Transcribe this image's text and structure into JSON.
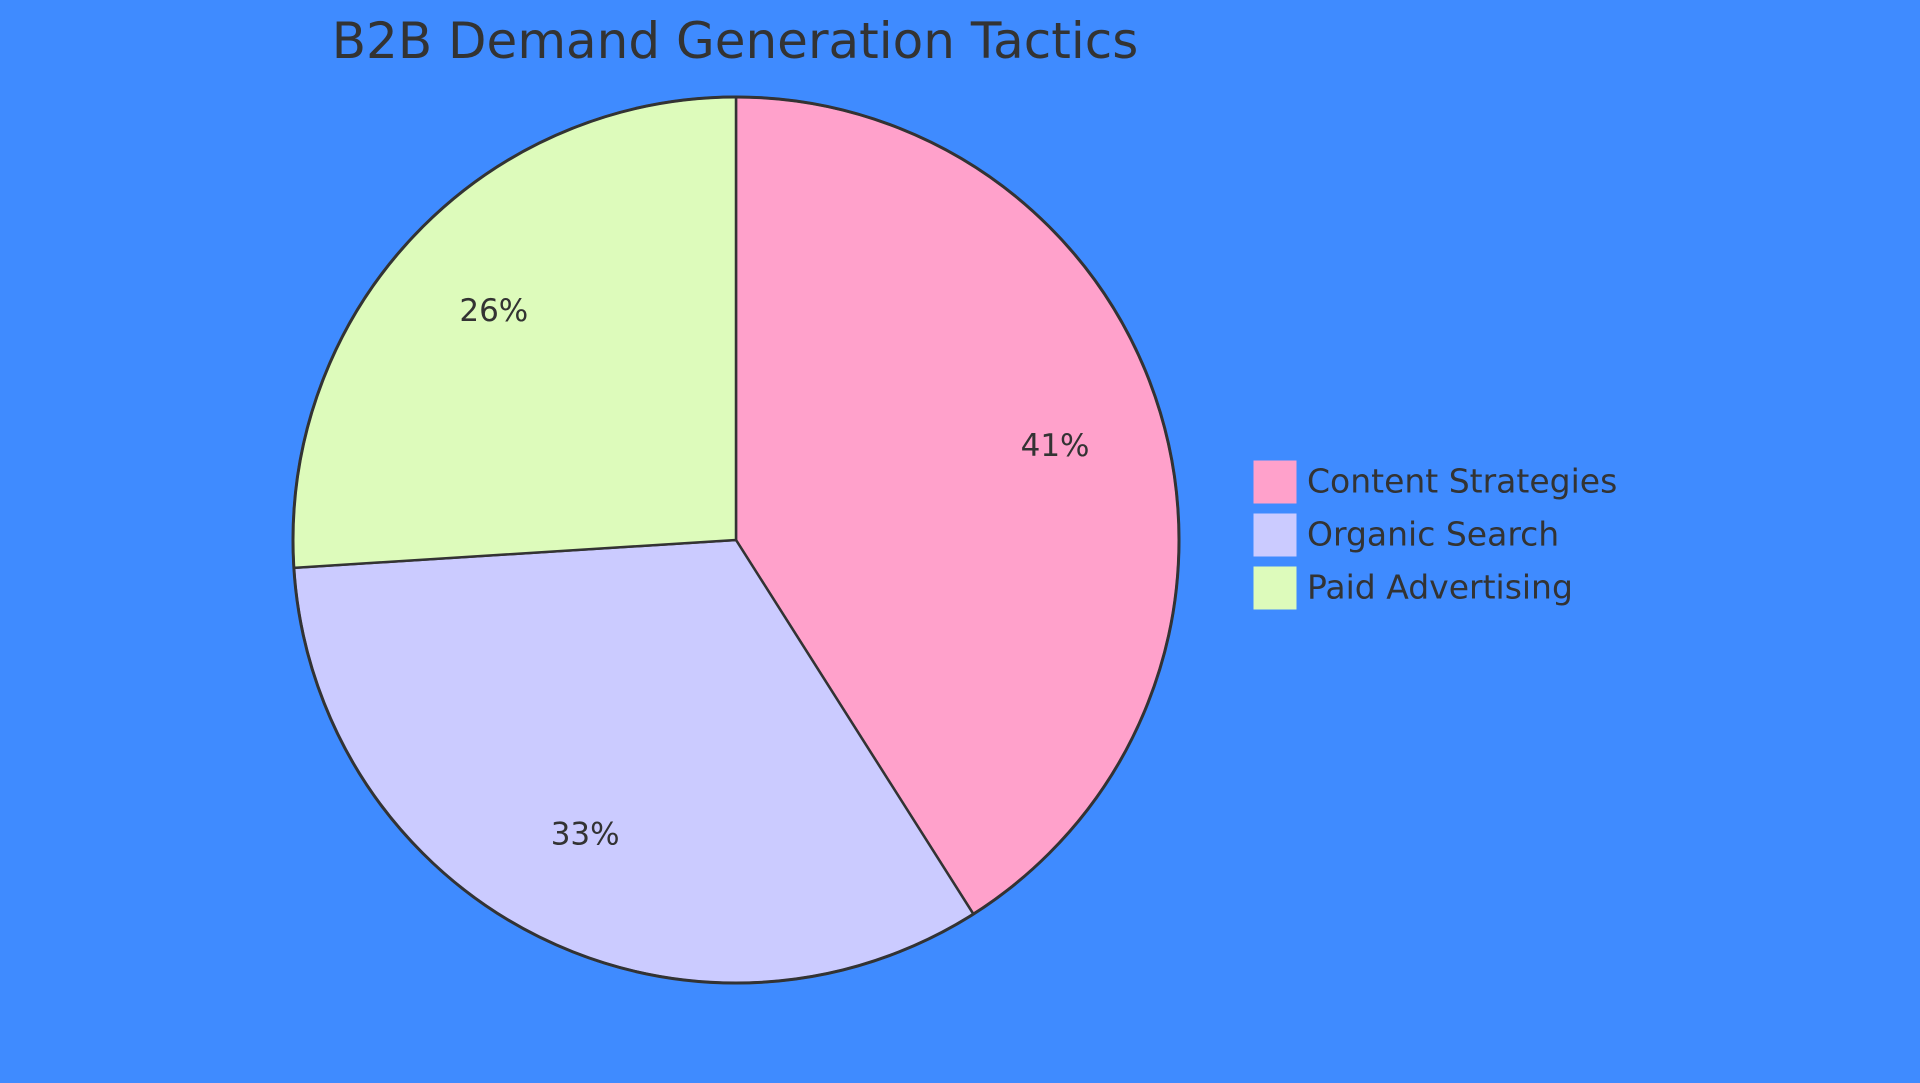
{
  "colors": {
    "background": "#3f8bff",
    "text": "#333333",
    "stroke": "#333333"
  },
  "chart_data": {
    "type": "pie",
    "title": "B2B Demand Generation Tactics",
    "legend_position": "right",
    "slices": [
      {
        "label": "Content Strategies",
        "value": 41,
        "display": "41%",
        "color": "#ffa1cb"
      },
      {
        "label": "Organic Search",
        "value": 33,
        "display": "33%",
        "color": "#cbcbff"
      },
      {
        "label": "Paid Advertising",
        "value": 26,
        "display": "26%",
        "color": "#ddfbbb"
      }
    ]
  }
}
